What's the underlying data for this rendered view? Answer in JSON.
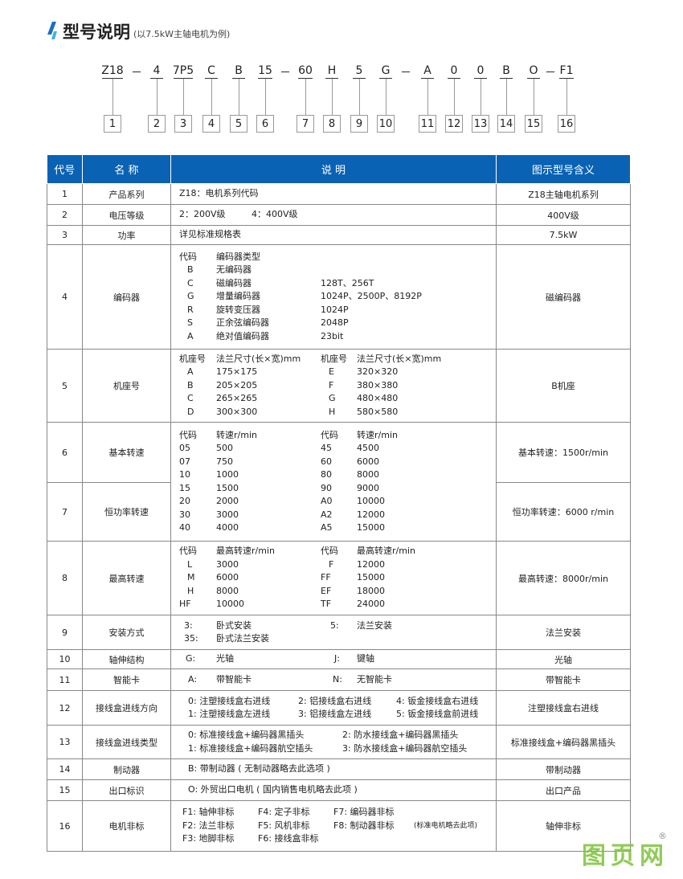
{
  "header": {
    "title": "型号说明",
    "subtitle": "(以7.5kW主轴电机为例)",
    "accent": "#1a6fc0"
  },
  "model_code": {
    "segments": [
      "Z18",
      "4",
      "7P5",
      "C",
      "B",
      "15",
      "60",
      "H",
      "5",
      "G",
      "A",
      "0",
      "0",
      "B",
      "O",
      "F1"
    ],
    "separator": "－",
    "indices": [
      "1",
      "2",
      "3",
      "4",
      "5",
      "6",
      "7",
      "8",
      "9",
      "10",
      "11",
      "12",
      "13",
      "14",
      "15",
      "16"
    ]
  },
  "table": {
    "header_color": "#0a62b4",
    "columns": [
      "代号",
      "名 称",
      "说 明",
      "图示型号含义"
    ],
    "rows": [
      {
        "code": "1",
        "name": "产品系列",
        "desc": [
          [
            "Z18：电机系列代码"
          ]
        ],
        "meaning": "Z18主轴电机系列"
      },
      {
        "code": "2",
        "name": "电压等级",
        "desc": [
          [
            "2：200V级",
            "4：400V级"
          ]
        ],
        "meaning": "400V级"
      },
      {
        "code": "3",
        "name": "功率",
        "desc": [
          [
            "详见标准规格表"
          ]
        ],
        "meaning": "7.5kW"
      },
      {
        "code": "4",
        "name": "编码器",
        "desc": [
          [
            "代码",
            "编码器类型",
            ""
          ],
          [
            "B",
            "无编码器",
            ""
          ],
          [
            "C",
            "磁编码器",
            "128T、256T"
          ],
          [
            "G",
            "增量编码器",
            "1024P、2500P、8192P"
          ],
          [
            "R",
            "旋转变压器",
            "1024P"
          ],
          [
            "S",
            "正余弦编码器",
            "2048P"
          ],
          [
            "A",
            "绝对值编码器",
            "23bit"
          ]
        ],
        "meaning": "磁编码器"
      },
      {
        "code": "5",
        "name": "机座号",
        "desc": [
          [
            "机座号",
            "法兰尺寸(长×宽)mm",
            "机座号",
            "法兰尺寸(长×宽)mm"
          ],
          [
            "A",
            "175×175",
            "E",
            "320×320"
          ],
          [
            "B",
            "205×205",
            "F",
            "380×380"
          ],
          [
            "C",
            "265×265",
            "G",
            "480×480"
          ],
          [
            "D",
            "300×300",
            "H",
            "580×580"
          ]
        ],
        "meaning": "B机座"
      },
      {
        "code": "6",
        "name": "基本转速",
        "desc": [
          [
            "代码",
            "转速r/min",
            "代码",
            "转速r/min"
          ],
          [
            "05",
            "500",
            "45",
            "4500"
          ],
          [
            "07",
            "750",
            "60",
            "6000"
          ],
          [
            "10",
            "1000",
            "80",
            "8000"
          ],
          [
            "15",
            "1500",
            "90",
            "9000"
          ],
          [
            "20",
            "2000",
            "A0",
            "10000"
          ],
          [
            "30",
            "3000",
            "A2",
            "12000"
          ],
          [
            "40",
            "4000",
            "A5",
            "15000"
          ]
        ],
        "meaning": "基本转速：1500r/min"
      },
      {
        "code": "7",
        "name": "恒功率转速",
        "meaning": "恒功率转速：6000 r/min"
      },
      {
        "code": "8",
        "name": "最高转速",
        "desc": [
          [
            "代码",
            "最高转速r/min",
            "代码",
            "最高转速r/min"
          ],
          [
            "L",
            "3000",
            "F",
            "12000"
          ],
          [
            "M",
            "6000",
            "FF",
            "15000"
          ],
          [
            "H",
            "8000",
            "EF",
            "18000"
          ],
          [
            "HF",
            "10000",
            "TF",
            "24000"
          ]
        ],
        "meaning": "最高转速：8000r/min"
      },
      {
        "code": "9",
        "name": "安装方式",
        "desc": [
          [
            "3:",
            "卧式安装",
            "5:",
            "法兰安装"
          ],
          [
            "35:",
            "卧式法兰安装"
          ]
        ],
        "meaning": "法兰安装"
      },
      {
        "code": "10",
        "name": "轴伸结构",
        "desc": [
          [
            "G:",
            "光轴",
            "J:",
            "键轴"
          ]
        ],
        "meaning": "光轴"
      },
      {
        "code": "11",
        "name": "智能卡",
        "desc": [
          [
            "A:",
            "带智能卡",
            "N:",
            "无智能卡"
          ]
        ],
        "meaning": "带智能卡"
      },
      {
        "code": "12",
        "name": "接线盒进线方向",
        "desc": [
          [
            "0: 注塑接线盒右进线",
            "2: 铝接线盒右进线",
            "4: 钣金接线盒右进线"
          ],
          [
            "1: 注塑接线盒左进线",
            "3: 铝接线盒左进线",
            "5: 钣金接线盒前进线"
          ]
        ],
        "meaning": "注塑接线盒右进线"
      },
      {
        "code": "13",
        "name": "接线盒进线类型",
        "desc": [
          [
            "0: 标准接线盒+编码器黑插头",
            "2: 防水接线盒+编码器黑插头"
          ],
          [
            "1: 标准接线盒+编码器航空插头",
            "3: 防水接线盒+编码器航空插头"
          ]
        ],
        "meaning": "标准接线盒+编码器黑插头"
      },
      {
        "code": "14",
        "name": "制动器",
        "desc": [
          [
            "B: 带制动器 ( 无制动器略去此选项 )"
          ]
        ],
        "meaning": "带制动器"
      },
      {
        "code": "15",
        "name": "出口标识",
        "desc": [
          [
            "O: 外贸出口电机 ( 国内销售电机略去此项 )"
          ]
        ],
        "meaning": "出口产品"
      },
      {
        "code": "16",
        "name": "电机非标",
        "desc": [
          [
            "F1: 轴伸非标",
            "F4: 定子非标",
            "F7: 编码器非标"
          ],
          [
            "F2: 法兰非标",
            "F5: 风机非标",
            "F8: 制动器非标"
          ],
          [
            "F3: 地脚非标",
            "F6: 接线盒非标"
          ]
        ],
        "desc_note": "(标准电机略去此项)",
        "meaning": "轴伸非标"
      }
    ]
  },
  "watermark": {
    "text": "图页网",
    "mark": "®",
    "color": "#7ec23a"
  }
}
